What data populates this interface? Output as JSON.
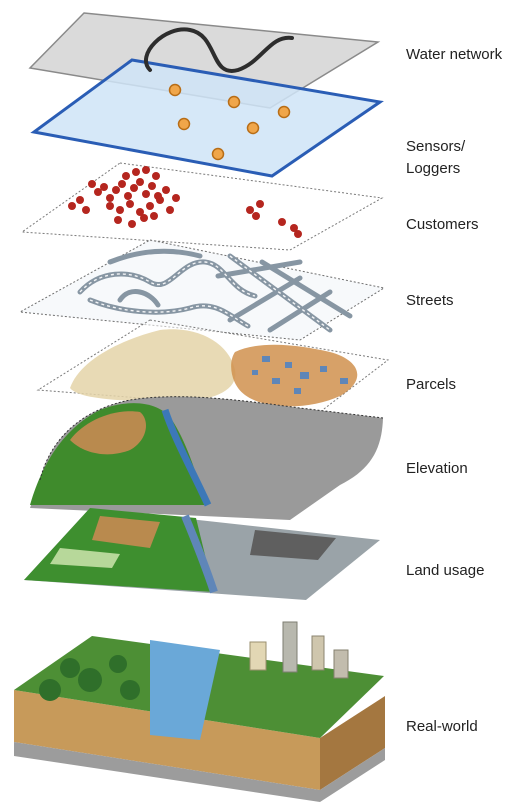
{
  "layers": [
    {
      "id": "water-network",
      "label": "Water network",
      "color": "#9e9e9e"
    },
    {
      "id": "sensors",
      "label_lines": [
        "Sensors/",
        "Loggers"
      ],
      "color": "#2a5db5"
    },
    {
      "id": "customers",
      "label": "Customers",
      "color": "#b5261f"
    },
    {
      "id": "streets",
      "label": "Streets",
      "color": "#8796a3"
    },
    {
      "id": "parcels",
      "label": "Parcels",
      "color": "#c98a4c"
    },
    {
      "id": "elevation",
      "label": "Elevation",
      "color": "#3f8b2c"
    },
    {
      "id": "land-usage",
      "label": "Land usage",
      "color": "#3e8f2f"
    },
    {
      "id": "real-world",
      "label": "Real-world",
      "color": "#8a5a2b"
    }
  ]
}
